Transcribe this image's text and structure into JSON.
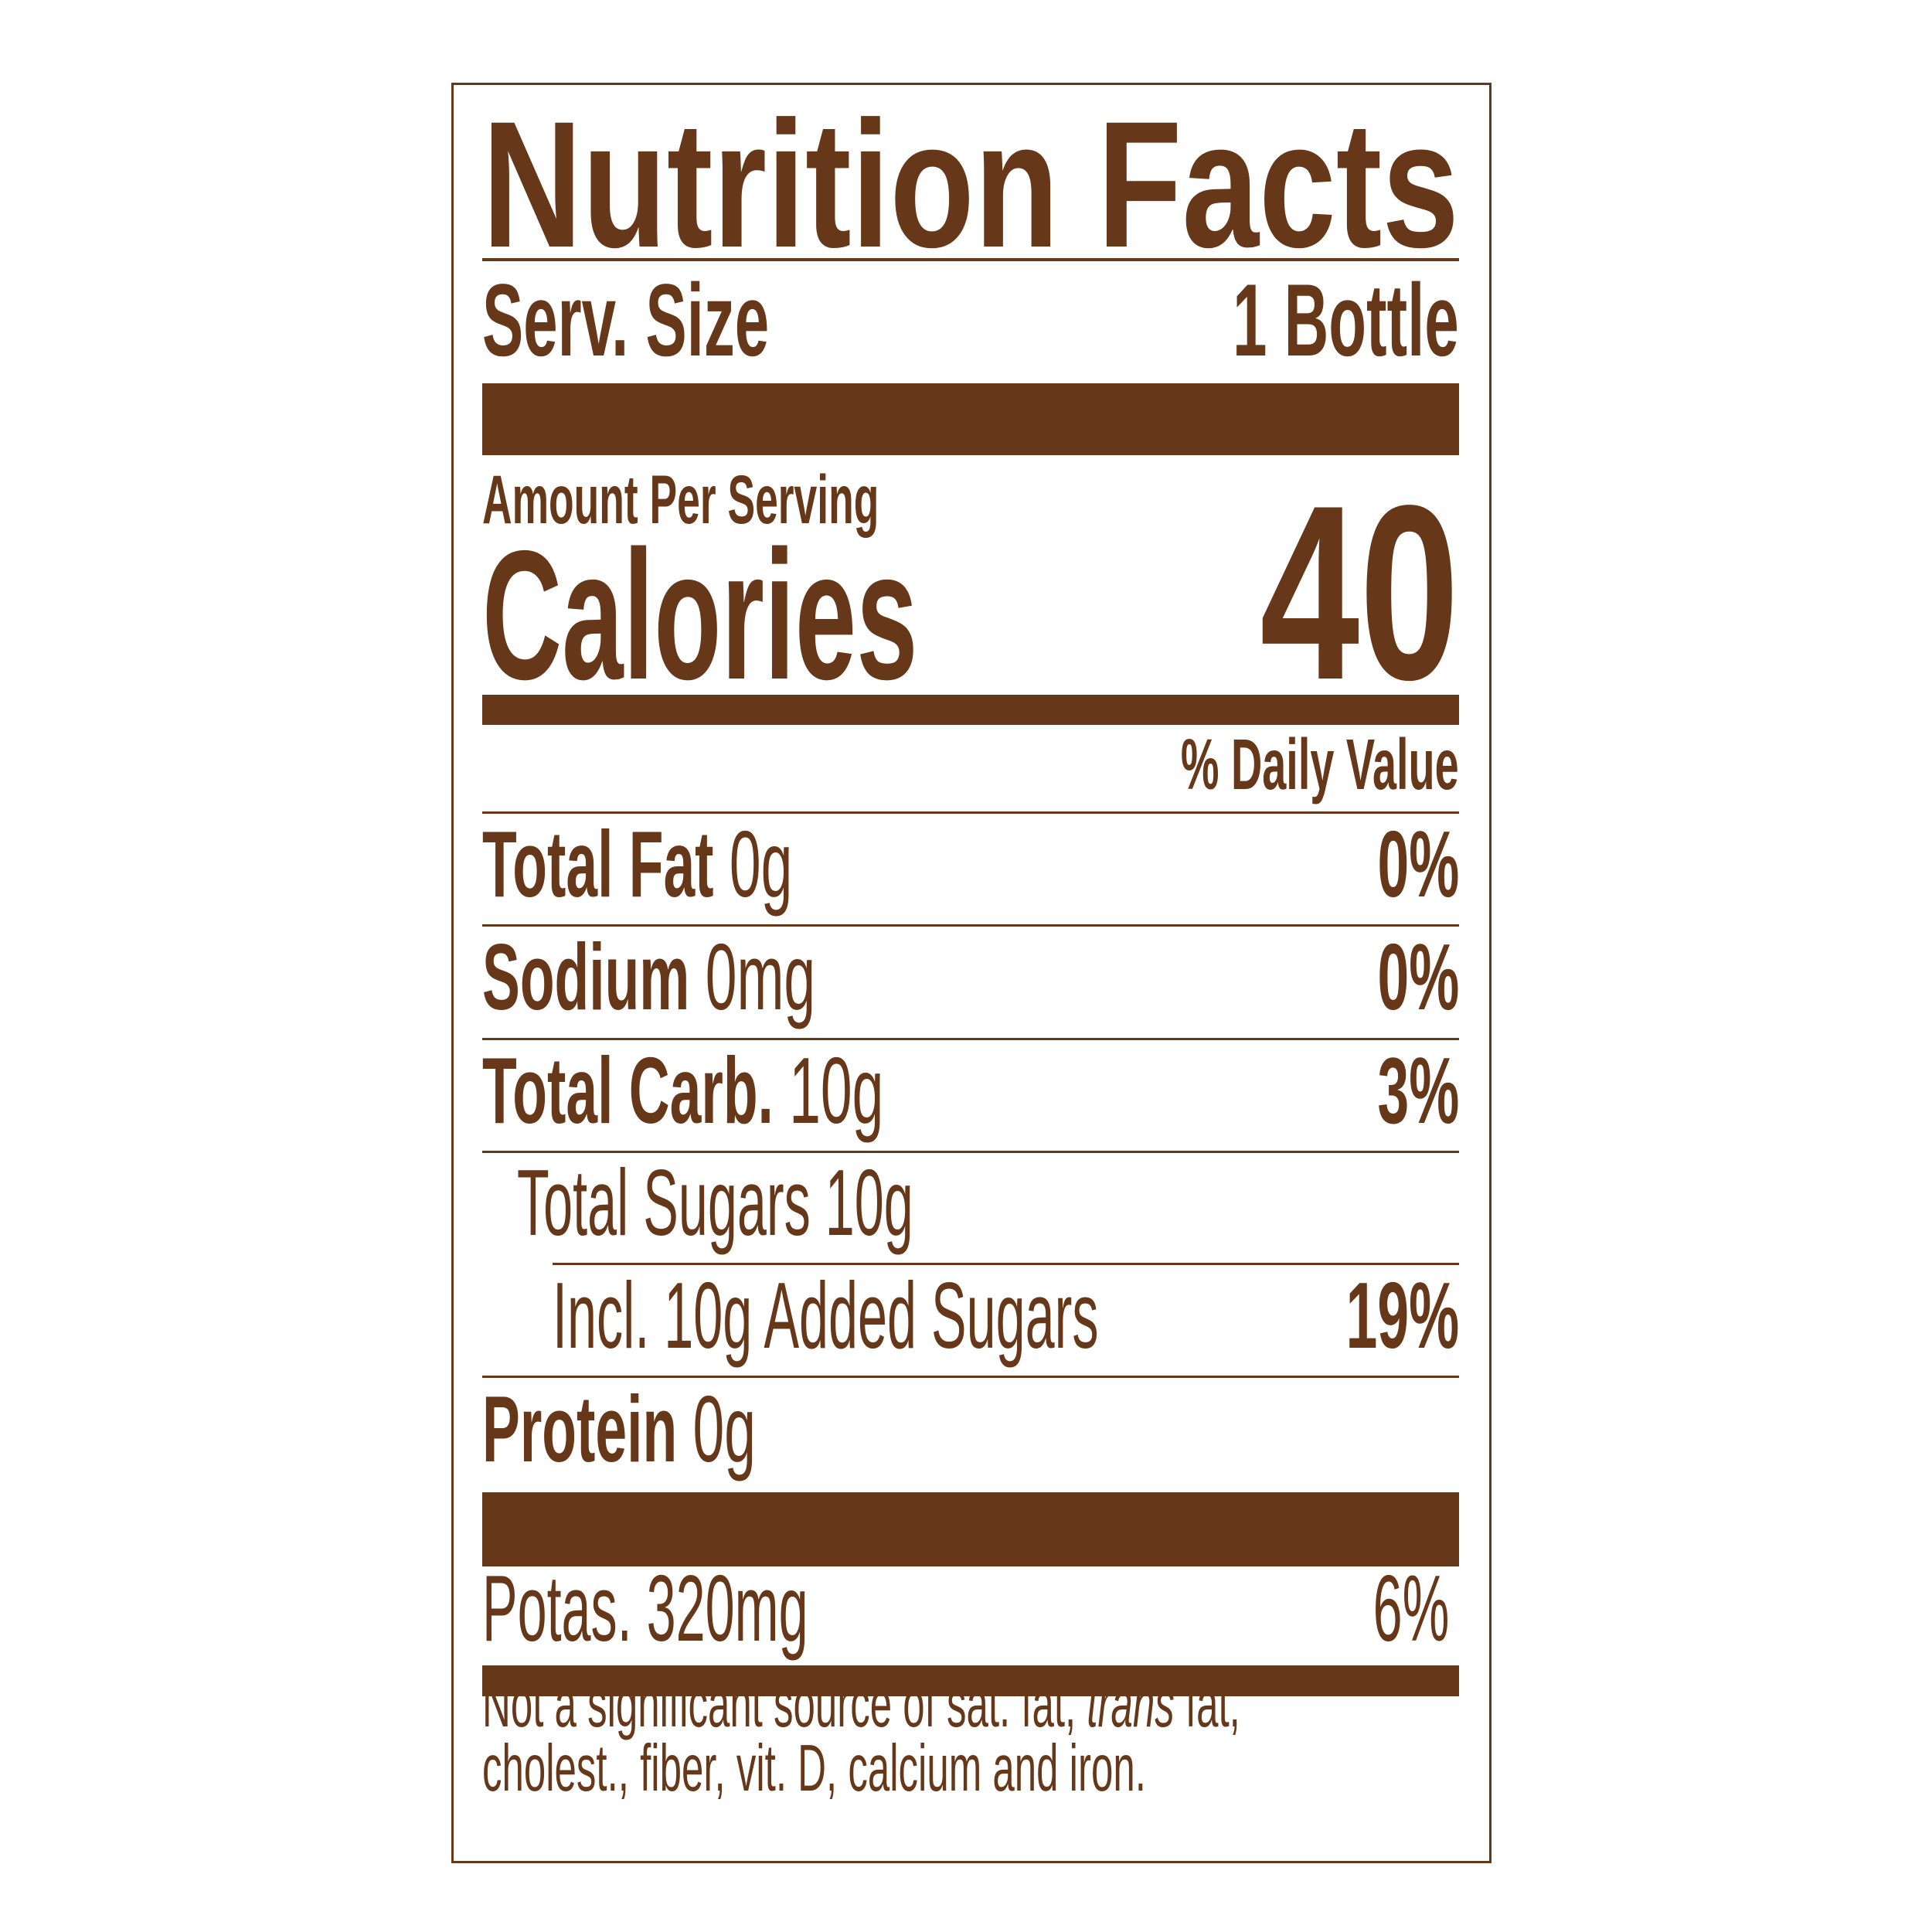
{
  "label": {
    "title": "Nutrition Facts",
    "serving_size_label": "Serv. Size",
    "serving_size_value": "1 Bottle",
    "amount_per_serving": "Amount Per Serving",
    "calories_label": "Calories",
    "calories_value": "40",
    "daily_value_header": "% Daily Value",
    "nutrients": [
      {
        "name": "Total Fat",
        "amount": "0g",
        "dv": "0%"
      },
      {
        "name": "Sodium",
        "amount": "0mg",
        "dv": "0%"
      },
      {
        "name": "Total Carb.",
        "amount": "10g",
        "dv": "3%"
      },
      {
        "name": "Total Sugars 10g",
        "amount": "",
        "dv": ""
      },
      {
        "name": "Incl. 10g Added Sugars",
        "amount": "",
        "dv": "19%"
      },
      {
        "name": "Protein",
        "amount": "0g",
        "dv": ""
      }
    ],
    "potassium": {
      "name": "Potas. 320mg",
      "dv": "6%"
    },
    "footnote": {
      "line1_a": "Not a significant source of sat. fat, ",
      "line1_italic": "trans",
      "line1_b": " fat,",
      "line2": "cholest., fiber, vit. D, calcium and iron."
    },
    "color": "#663819"
  }
}
